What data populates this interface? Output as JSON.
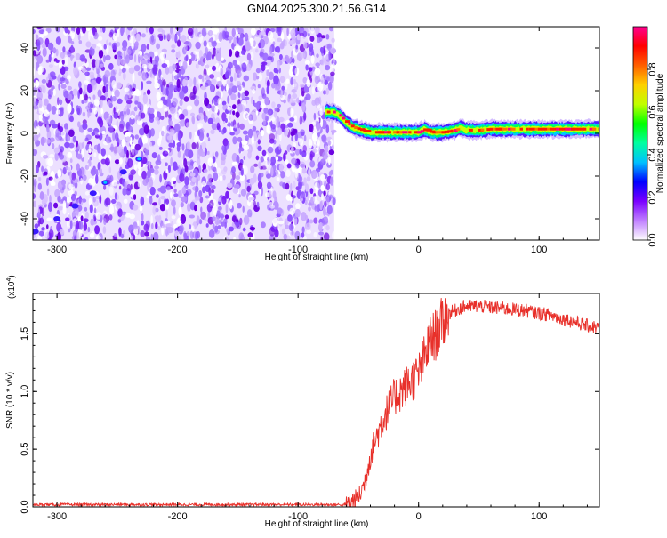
{
  "title": "GN04.2025.300.21.56.G14",
  "chart_data": [
    {
      "type": "heatmap",
      "name": "spectrogram",
      "xlabel": "Height of straight line (km)",
      "ylabel": "Frequency (Hz)",
      "xlim": [
        -320,
        150
      ],
      "ylim": [
        -50,
        50
      ],
      "xticks": [
        -300,
        -200,
        -100,
        0,
        100
      ],
      "yticks": [
        -40,
        -20,
        0,
        20,
        40
      ],
      "noise_region_x": [
        -320,
        -70
      ],
      "colorbar": {
        "label": "Normalized spectral amplitude",
        "range": [
          0,
          1
        ],
        "ticks": [
          "0.0",
          "0.2",
          "0.4",
          "0.6",
          "0.8"
        ],
        "colors": [
          "#ffffff",
          "#c080ff",
          "#7a00ff",
          "#0000ff",
          "#00c0ff",
          "#00ffa0",
          "#00ff00",
          "#c0ff00",
          "#ffd000",
          "#ff6000",
          "#ff0000",
          "#ff0090"
        ]
      },
      "ridge": {
        "x": [
          -78,
          -70,
          -65,
          -60,
          -55,
          -50,
          -40,
          -30,
          -20,
          -10,
          0,
          5,
          10,
          20,
          30,
          35,
          40,
          50,
          60,
          80,
          100,
          120,
          140,
          150
        ],
        "y": [
          10,
          10,
          8,
          5,
          3,
          2,
          0.5,
          0.5,
          0.5,
          0.5,
          0.5,
          2,
          0.5,
          0.5,
          1.5,
          2.5,
          1.5,
          1.5,
          2,
          2,
          2,
          2,
          2,
          2
        ]
      },
      "sparse_track": {
        "x": [
          -318,
          -300,
          -285,
          -270,
          -260,
          -245,
          -232
        ],
        "y": [
          -46,
          -40,
          -34,
          -28,
          -23,
          -18,
          -12
        ]
      }
    },
    {
      "type": "line",
      "name": "snr",
      "xlabel": "Height of straight line (km)",
      "ylabel": "SNR (10 * v/v)",
      "y_multiplier_label": "(x10",
      "y_multiplier_exponent": "4",
      "y_multiplier_close": ")",
      "xlim": [
        -320,
        150
      ],
      "ylim": [
        0,
        1.85
      ],
      "xticks": [
        -300,
        -200,
        -100,
        0,
        100
      ],
      "yticks": [
        "0.0",
        "0.5",
        "1.0",
        "1.5"
      ],
      "color": "#e8302a",
      "x": [
        -320,
        -100,
        -60,
        -55,
        -50,
        -45,
        -40,
        -35,
        -30,
        -25,
        -20,
        -15,
        -10,
        -5,
        0,
        5,
        10,
        15,
        20,
        25,
        30,
        35,
        40,
        50,
        60,
        70,
        80,
        90,
        100,
        110,
        120,
        130,
        140,
        150
      ],
      "y": [
        0.02,
        0.02,
        0.02,
        0.05,
        0.08,
        0.2,
        0.45,
        0.6,
        0.75,
        0.85,
        0.95,
        1.0,
        1.05,
        1.1,
        1.15,
        1.3,
        1.45,
        1.5,
        1.6,
        1.68,
        1.7,
        1.73,
        1.74,
        1.74,
        1.73,
        1.72,
        1.71,
        1.7,
        1.68,
        1.66,
        1.63,
        1.6,
        1.57,
        1.55
      ]
    }
  ]
}
